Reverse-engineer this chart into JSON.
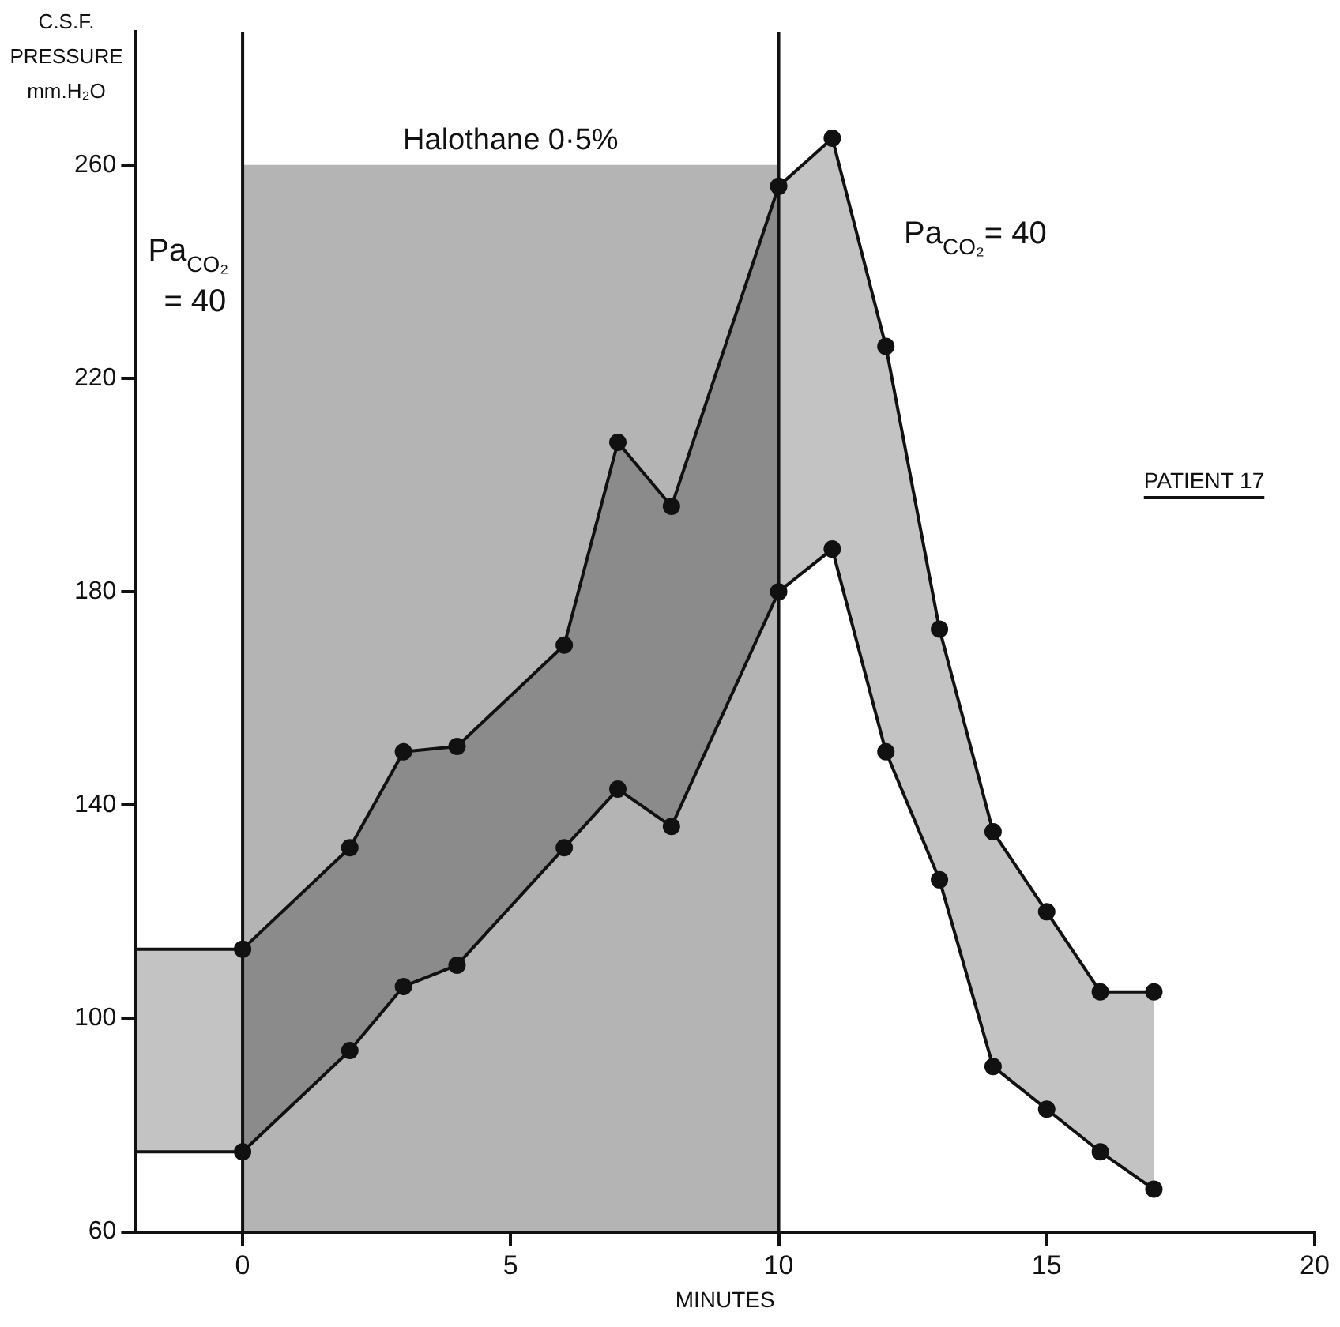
{
  "chart_data": {
    "type": "line",
    "xlabel": "MINUTES",
    "ylabel": "C.S.F. PRESSURE mm.H₂O",
    "xlim": [
      -2,
      20
    ],
    "xticks": [
      0,
      5,
      10,
      15,
      20
    ],
    "ylim": [
      60,
      285
    ],
    "yticks": [
      60,
      100,
      140,
      180,
      220,
      260
    ],
    "grid": false,
    "legend": false,
    "marker": "circle",
    "line_style": "solid",
    "series": [
      {
        "color": "#111111",
        "x": [
          0,
          2,
          3,
          4,
          6,
          7,
          8,
          10,
          11,
          12,
          13,
          14,
          15,
          16,
          17
        ],
        "values": [
          113,
          132,
          150,
          151,
          170,
          208,
          196,
          256,
          265,
          226,
          173,
          135,
          120,
          105,
          105
        ],
        "lower": [
          75,
          94,
          106,
          110,
          132,
          143,
          136,
          180,
          188,
          150,
          126,
          91,
          83,
          75,
          68
        ],
        "upper": [
          113,
          132,
          150,
          151,
          170,
          208,
          196,
          256,
          265,
          226,
          173,
          135,
          120,
          105,
          105
        ]
      },
      {
        "color": "#111111",
        "x": [
          0,
          2,
          3,
          4,
          6,
          7,
          8,
          10,
          11,
          12,
          13,
          14,
          15,
          16,
          17
        ],
        "values": [
          75,
          94,
          106,
          110,
          132,
          143,
          136,
          180,
          188,
          150,
          126,
          91,
          83,
          75,
          68
        ]
      },
      {
        "color": "#111111",
        "marker": "none",
        "x": [
          -2,
          0
        ],
        "values": [
          113,
          113
        ],
        "lower": [
          75,
          75
        ],
        "upper": [
          113,
          113
        ]
      },
      {
        "color": "#111111",
        "marker": "none",
        "x": [
          -2,
          0
        ],
        "values": [
          75,
          75
        ]
      }
    ],
    "bands": [
      {
        "axis": "x",
        "from": 0,
        "to": 10,
        "label": "Halothane 0·5%",
        "color": "#b4b4b4"
      }
    ],
    "ref_lines": [
      {
        "axis": "x",
        "value": 0,
        "color": "#111111"
      },
      {
        "axis": "x",
        "value": 10,
        "color": "#111111"
      }
    ],
    "annotations": [
      "Pa$_{CO₂}$ = 40",
      "Pa$_{CO₂}$= 40",
      "PATIENT 17"
    ]
  }
}
